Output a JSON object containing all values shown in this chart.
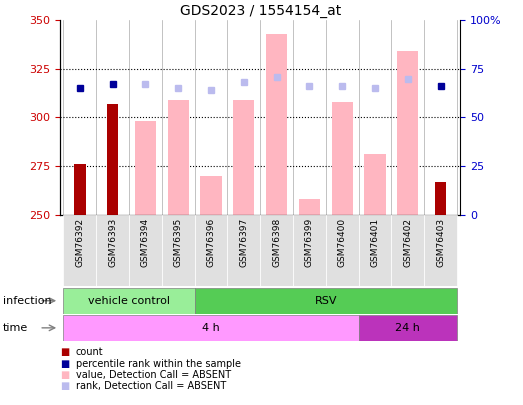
{
  "title": "GDS2023 / 1554154_at",
  "samples": [
    "GSM76392",
    "GSM76393",
    "GSM76394",
    "GSM76395",
    "GSM76396",
    "GSM76397",
    "GSM76398",
    "GSM76399",
    "GSM76400",
    "GSM76401",
    "GSM76402",
    "GSM76403"
  ],
  "ylim": [
    250,
    350
  ],
  "y2lim": [
    0,
    100
  ],
  "yticks": [
    250,
    275,
    300,
    325,
    350
  ],
  "y2ticks": [
    0,
    25,
    50,
    75,
    100
  ],
  "y2tick_labels": [
    "0",
    "25",
    "50",
    "75",
    "100%"
  ],
  "count_values": [
    276,
    307,
    null,
    null,
    null,
    null,
    null,
    null,
    null,
    null,
    null,
    267
  ],
  "rank_values": [
    315,
    317,
    null,
    null,
    null,
    null,
    null,
    null,
    null,
    null,
    null,
    316
  ],
  "value_absent": [
    null,
    null,
    298,
    309,
    270,
    309,
    343,
    258,
    308,
    281,
    334,
    null
  ],
  "rank_absent": [
    null,
    null,
    317,
    315,
    314,
    318,
    321,
    316,
    316,
    315,
    320,
    null
  ],
  "count_color": "#AA0000",
  "rank_color": "#000099",
  "value_absent_color": "#FFB6C1",
  "rank_absent_color": "#BBBBEE",
  "tick_label_color_left": "#CC0000",
  "tick_label_color_right": "#0000CC",
  "infection_vc_color": "#99EE99",
  "infection_rsv_color": "#55CC55",
  "time_4h_color": "#FF99FF",
  "time_24h_color": "#BB33BB",
  "legend_items": [
    {
      "color": "#AA0000",
      "label": "count"
    },
    {
      "color": "#000099",
      "label": "percentile rank within the sample"
    },
    {
      "color": "#FFB6C1",
      "label": "value, Detection Call = ABSENT"
    },
    {
      "color": "#BBBBEE",
      "label": "rank, Detection Call = ABSENT"
    }
  ]
}
